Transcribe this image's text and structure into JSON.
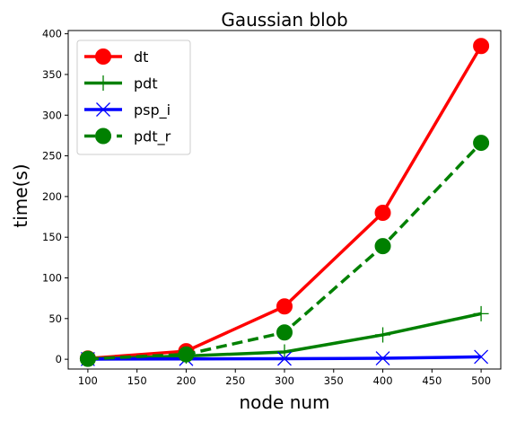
{
  "chart_data": {
    "type": "line",
    "title": "Gaussian blob",
    "xlabel": "node num",
    "ylabel": "time(s)",
    "xlim": [
      80,
      520
    ],
    "ylim": [
      -12,
      404
    ],
    "x_ticks": [
      100,
      150,
      200,
      250,
      300,
      350,
      400,
      450,
      500
    ],
    "y_ticks": [
      0,
      50,
      100,
      150,
      200,
      250,
      300,
      350,
      400
    ],
    "x": [
      100,
      200,
      300,
      400,
      500
    ],
    "legend_position": "upper-left",
    "grid": false,
    "series": [
      {
        "name": "dt",
        "values": [
          1,
          10,
          65,
          180,
          385
        ],
        "color": "#ff0000",
        "linestyle": "solid",
        "marker": "circle"
      },
      {
        "name": "pdt",
        "values": [
          0.5,
          4,
          9,
          30,
          56
        ],
        "color": "#008000",
        "linestyle": "solid",
        "marker": "plus"
      },
      {
        "name": "psp_i",
        "values": [
          0.2,
          0.4,
          0.7,
          1.2,
          3
        ],
        "color": "#0000ff",
        "linestyle": "solid",
        "marker": "x"
      },
      {
        "name": "pdt_r",
        "values": [
          0.5,
          6,
          33,
          139,
          266
        ],
        "color": "#008000",
        "linestyle": "dashed",
        "marker": "circle"
      }
    ]
  }
}
